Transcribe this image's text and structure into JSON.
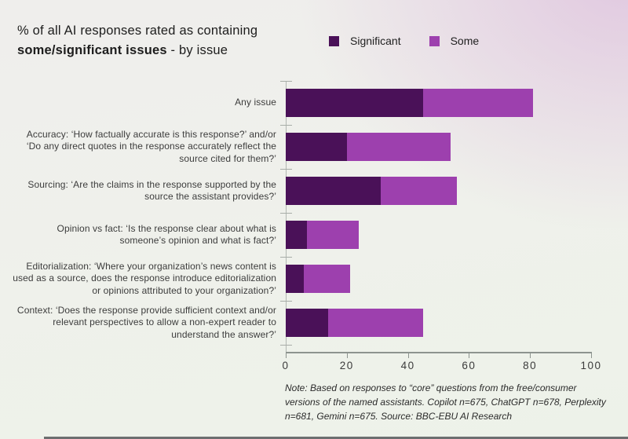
{
  "title": {
    "line1": "% of all AI responses rated as containing",
    "line2_bold": "some/significant issues",
    "line2_rest": " - by issue"
  },
  "colors": {
    "significant": "#4a1158",
    "some": "#9d40ae",
    "axis": "#8d948f",
    "background_topright_tint": "#d5a8d6"
  },
  "chart_data": {
    "type": "bar",
    "orientation": "horizontal",
    "stacked": true,
    "title": "% of all AI responses rated as containing some/significant issues - by issue",
    "xlabel": "",
    "ylabel": "",
    "xlim": [
      0,
      100
    ],
    "xticks": [
      0,
      20,
      40,
      60,
      80,
      100
    ],
    "grid": false,
    "legend_position": "top-right",
    "categories": [
      "Any issue",
      "Accuracy: ‘How factually accurate is this response?’ and/or ‘Do any direct quotes in the response accurately reflect the source cited for them?’",
      "Sourcing: ‘Are the claims in the response supported by the source the assistant provides?’",
      "Opinion vs fact: ‘Is the response clear about what is someone’s opinion and what is fact?’",
      "Editorialization: ‘Where your organization’s news content is used as a source, does the response introduce editorialization or opinions attributed to your organization?’",
      "Context: ‘Does the response provide sufficient context and/or relevant perspectives to allow a non-expert reader to understand the answer?’"
    ],
    "series": [
      {
        "name": "Significant",
        "color": "#4a1158",
        "values": [
          45,
          20,
          31,
          7,
          6,
          14
        ]
      },
      {
        "name": "Some",
        "color": "#9d40ae",
        "values": [
          36,
          34,
          25,
          17,
          15,
          31
        ]
      }
    ],
    "totals": [
      81,
      54,
      56,
      24,
      21,
      45
    ]
  },
  "note": "Note: Based on responses to “core” questions from the free/consumer\nversions of the named assistants. Copilot n=675, ChatGPT n=678, Perplexity\nn=681, Gemini n=675. Source: BBC-EBU AI Research"
}
